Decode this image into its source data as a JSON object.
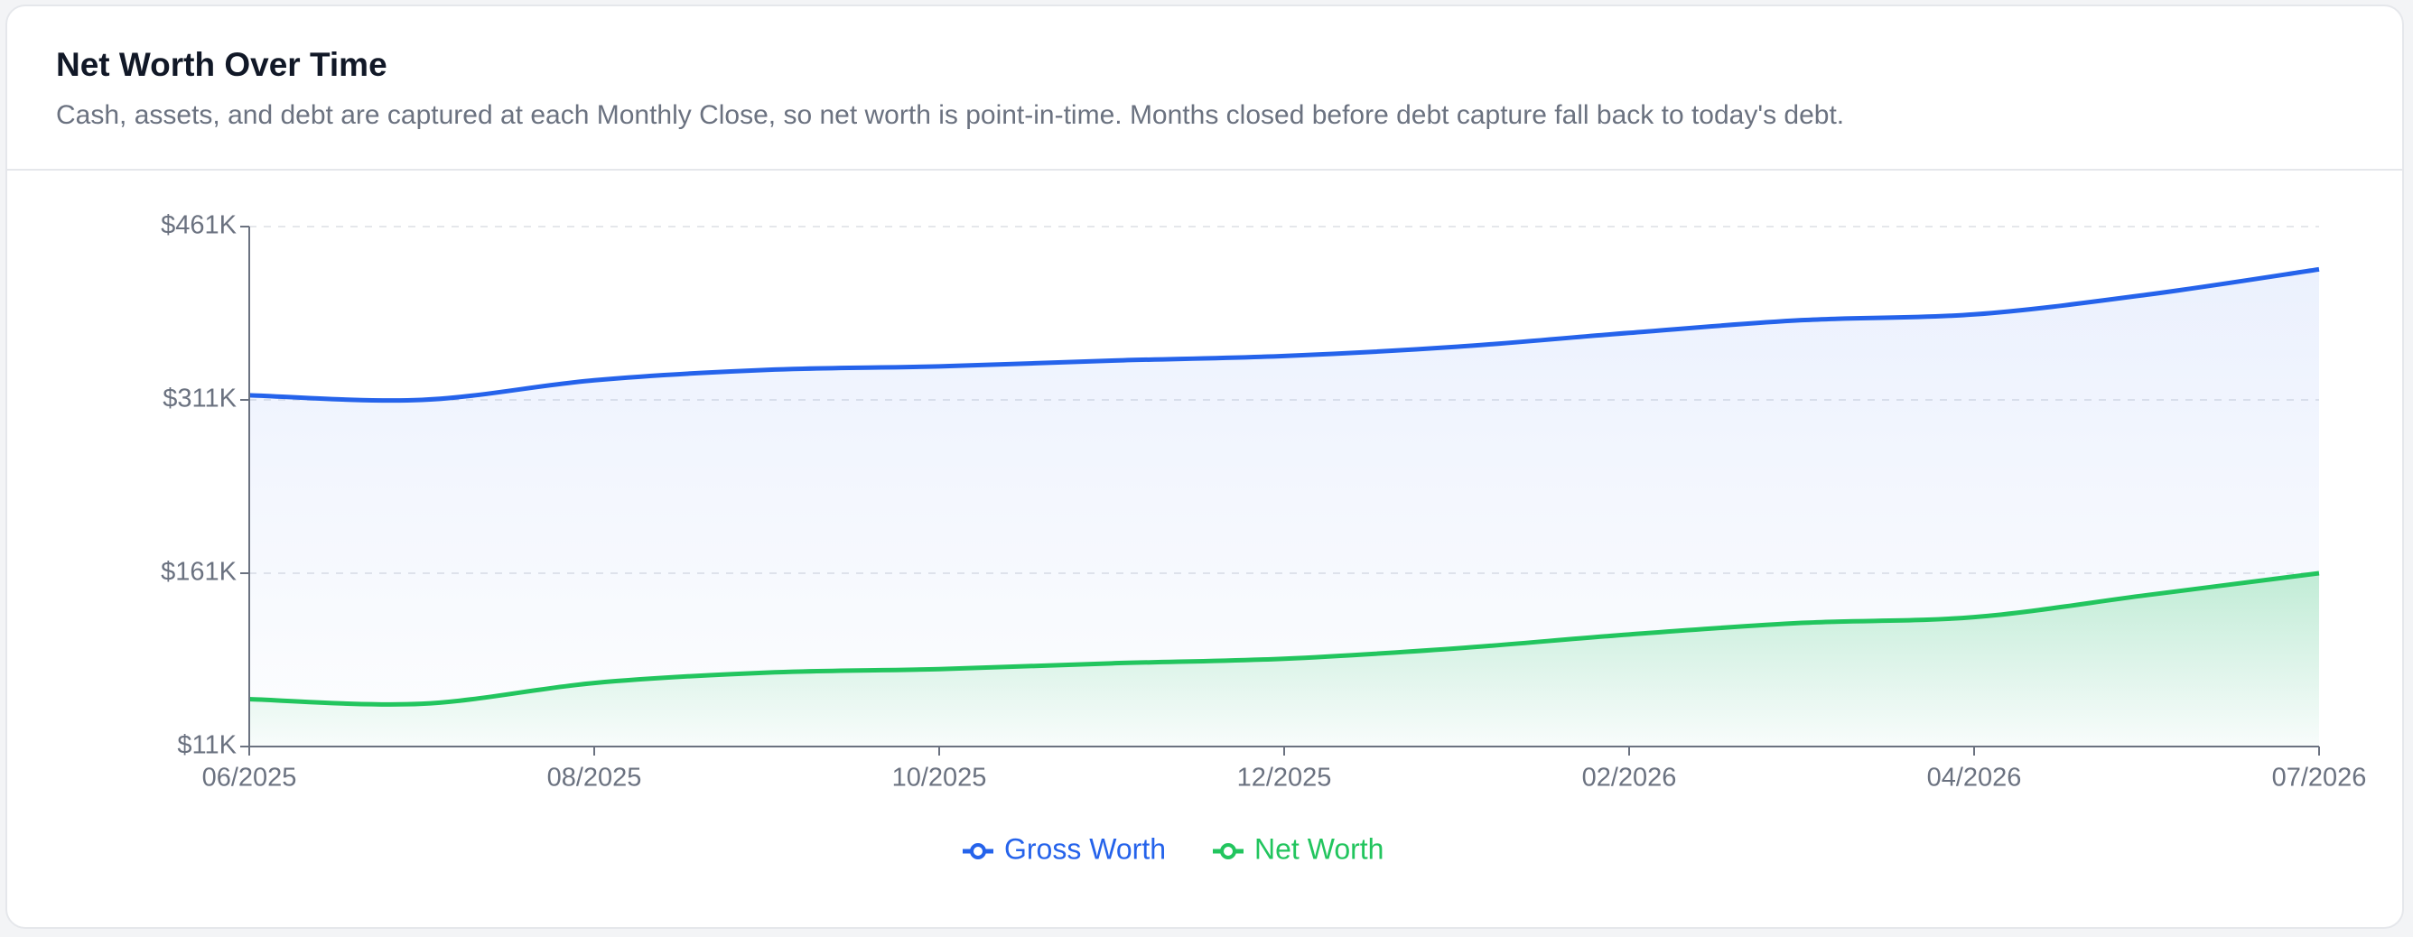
{
  "chart_data": {
    "type": "line",
    "title": "Net Worth Over Time",
    "subtitle": "Cash, assets, and debt are captured at each Monthly Close, so net worth is point-in-time. Months closed before debt capture fall back to today's debt.",
    "categories": [
      "06/2025",
      null,
      "08/2025",
      null,
      "10/2025",
      null,
      "12/2025",
      null,
      "02/2026",
      null,
      "04/2026",
      null,
      "07/2026"
    ],
    "series": [
      {
        "name": "Gross Worth",
        "color": "#2563eb",
        "values": [
          315000,
          311000,
          328000,
          337000,
          340000,
          345000,
          349000,
          357000,
          369000,
          380000,
          385000,
          402000,
          424000
        ]
      },
      {
        "name": "Net Worth",
        "color": "#22c55e",
        "values": [
          52000,
          48000,
          66000,
          75000,
          78000,
          83000,
          87000,
          96000,
          108000,
          118000,
          123000,
          142000,
          161000
        ]
      }
    ],
    "ylim": [
      11000,
      461000
    ],
    "yticks": [
      {
        "value": 11000,
        "label": "$11K"
      },
      {
        "value": 161000,
        "label": "$161K"
      },
      {
        "value": 311000,
        "label": "$311K"
      },
      {
        "value": 461000,
        "label": "$461K"
      }
    ],
    "grid": true
  }
}
